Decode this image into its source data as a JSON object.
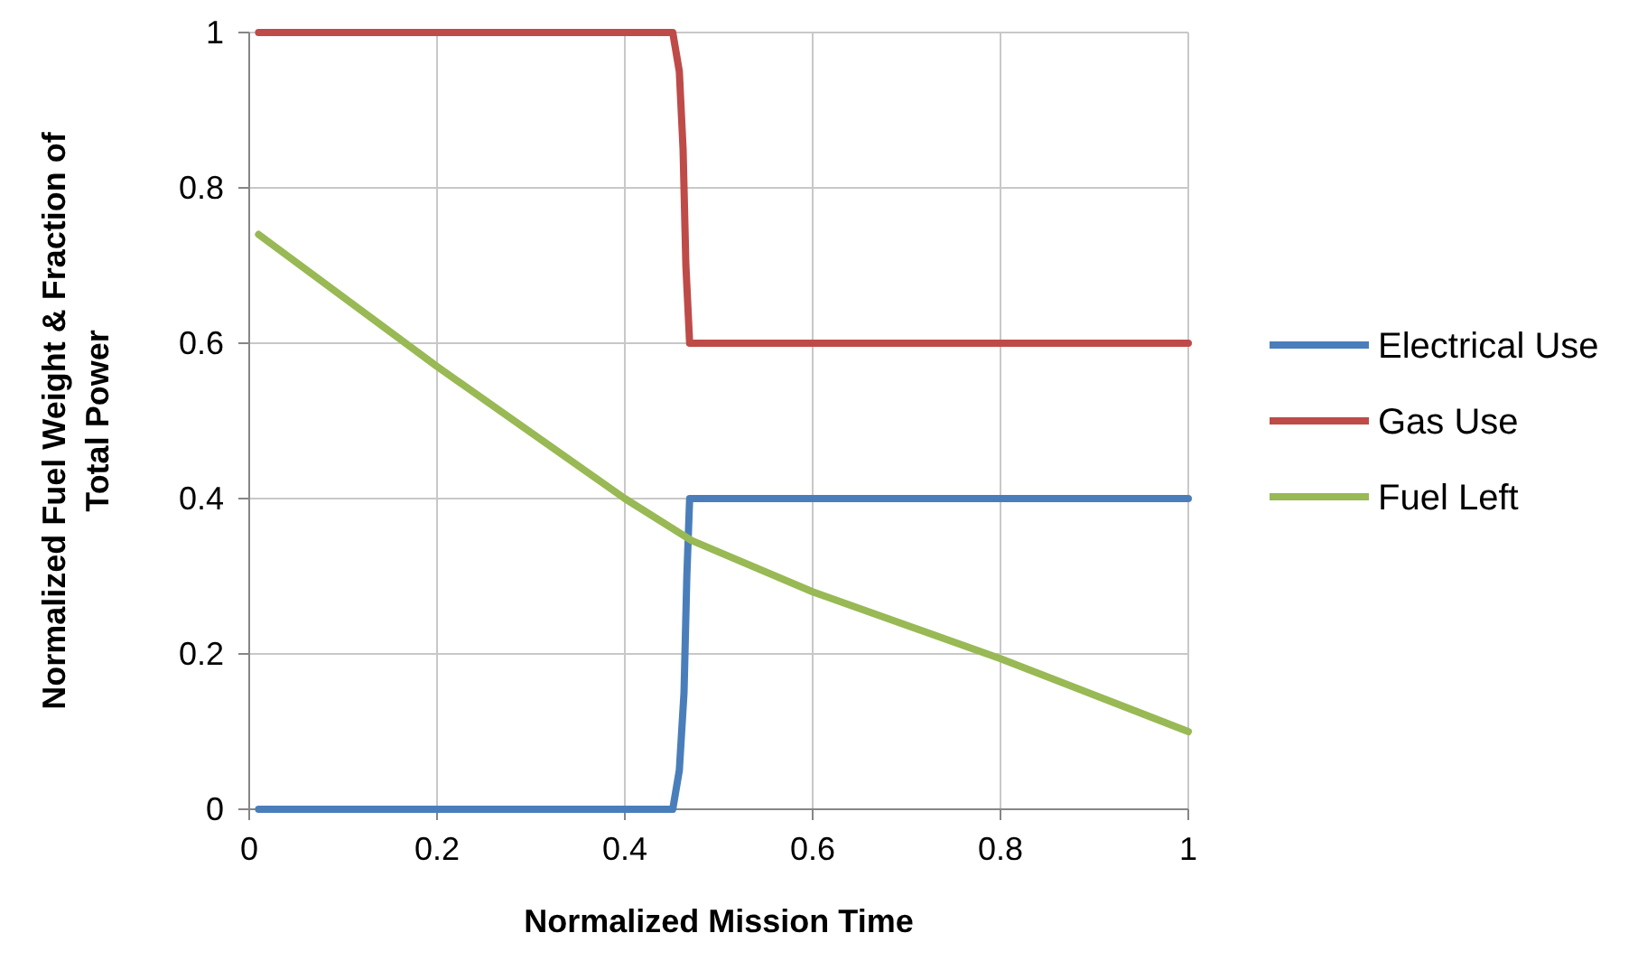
{
  "chart_data": {
    "type": "line",
    "xlabel": "Normalized Mission Time",
    "ylabel": "Normalized Fuel Weight & Fraction of Total Power",
    "xlim": [
      0,
      1
    ],
    "ylim": [
      0,
      1
    ],
    "xticks": [
      0,
      0.2,
      0.4,
      0.6,
      0.8,
      1
    ],
    "yticks": [
      0,
      0.2,
      0.4,
      0.6,
      0.8,
      1
    ],
    "grid": true,
    "legend": "right",
    "line_style": "solid",
    "marker": "none",
    "series": [
      {
        "name": "Electrical Use",
        "color": "#4a7ebb",
        "x": [
          0.01,
          0.451,
          0.458,
          0.463,
          0.466,
          0.469,
          1
        ],
        "values": [
          0,
          0,
          0.05,
          0.15,
          0.3,
          0.4,
          0.4
        ]
      },
      {
        "name": "Gas Use",
        "color": "#be4b48",
        "x": [
          0.01,
          0.451,
          0.458,
          0.462,
          0.465,
          0.469,
          1
        ],
        "values": [
          1,
          1,
          0.95,
          0.85,
          0.7,
          0.6,
          0.6
        ]
      },
      {
        "name": "Fuel Left",
        "color": "#98b954",
        "x": [
          0.01,
          0.2,
          0.4,
          0.471,
          0.6,
          0.8,
          1
        ],
        "values": [
          0.74,
          0.57,
          0.4,
          0.346,
          0.28,
          0.194,
          0.1
        ]
      }
    ]
  }
}
